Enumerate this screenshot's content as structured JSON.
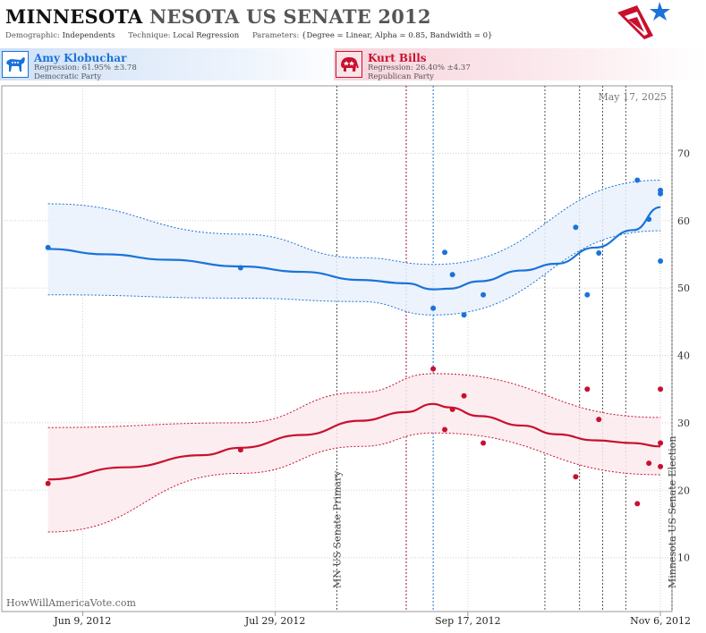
{
  "header": {
    "title_part1": "MINNESOTA",
    "title_part2": "NESOTA US SENATE 2012",
    "demographic_label": "Demographic:",
    "demographic_value": "Independents",
    "technique_label": "Technique:",
    "technique_value": "Local Regression",
    "parameters_label": "Parameters:",
    "parameters_value": "{Degree = Linear, Alpha = 0.85, Bandwidth = 0}"
  },
  "logo": {
    "icon": "star-flag-logo-icon"
  },
  "candidates": [
    {
      "name": "Amy Klobuchar",
      "regression": "Regression: 61.95% ±3.78",
      "party": "Democratic Party",
      "icon": "donkey-icon",
      "color": "#1a73d9"
    },
    {
      "name": "Kurt Bills",
      "regression": "Regression: 26.40% ±4.37",
      "party": "Republican Party",
      "icon": "elephant-icon",
      "color": "#c8102e"
    }
  ],
  "chart_data": {
    "type": "scatter",
    "x_axis_type": "date",
    "x_ticks": [
      "Jun 9, 2012",
      "Jul 29, 2012",
      "Sep 17, 2012",
      "Nov 6, 2012"
    ],
    "y_ticks": [
      10,
      20,
      30,
      40,
      50,
      60,
      70
    ],
    "ylim": [
      2,
      80
    ],
    "xlim": [
      "2012-05-19",
      "2012-11-09"
    ],
    "current_date": "May 17, 2025",
    "watermark": "HowWillAmericaVote.com",
    "grid": "horizontal and vertical dotted",
    "series": [
      {
        "name": "Amy Klobuchar",
        "color": "#1a73d9",
        "band_fill": "#e9f1fb",
        "polls": [
          {
            "x": "2012-05-31",
            "y": 56
          },
          {
            "x": "2012-07-20",
            "y": 53
          },
          {
            "x": "2012-09-08",
            "y": 47
          },
          {
            "x": "2012-09-11",
            "y": 55.3
          },
          {
            "x": "2012-09-13",
            "y": 52
          },
          {
            "x": "2012-09-16",
            "y": 46
          },
          {
            "x": "2012-09-21",
            "y": 49
          },
          {
            "x": "2012-10-15",
            "y": 59
          },
          {
            "x": "2012-10-18",
            "y": 49
          },
          {
            "x": "2012-10-21",
            "y": 55.2
          },
          {
            "x": "2012-10-31",
            "y": 66
          },
          {
            "x": "2012-11-03",
            "y": 60.2
          },
          {
            "x": "2012-11-06",
            "y": 64.5
          },
          {
            "x": "2012-11-06",
            "y": 64
          },
          {
            "x": "2012-11-06",
            "y": 54
          }
        ],
        "regression": [
          {
            "x": "2012-05-31",
            "y": 55.8,
            "lo": 49,
            "hi": 62.5
          },
          {
            "x": "2012-06-15",
            "y": 55
          },
          {
            "x": "2012-07-01",
            "y": 54.2
          },
          {
            "x": "2012-07-20",
            "y": 53.2,
            "lo": 48.5,
            "hi": 58
          },
          {
            "x": "2012-08-05",
            "y": 52.4
          },
          {
            "x": "2012-08-20",
            "y": 51.2,
            "lo": 48,
            "hi": 54.5
          },
          {
            "x": "2012-09-01",
            "y": 50.7
          },
          {
            "x": "2012-09-08",
            "y": 49.8,
            "lo": 46,
            "hi": 53.5
          },
          {
            "x": "2012-09-12",
            "y": 49.9
          },
          {
            "x": "2012-09-20",
            "y": 51
          },
          {
            "x": "2012-10-01",
            "y": 52.6
          },
          {
            "x": "2012-10-10",
            "y": 53.6
          },
          {
            "x": "2012-10-20",
            "y": 56
          },
          {
            "x": "2012-10-30",
            "y": 58.6
          },
          {
            "x": "2012-11-06",
            "y": 62,
            "lo": 58.5,
            "hi": 66
          }
        ]
      },
      {
        "name": "Kurt Bills",
        "color": "#c8102e",
        "band_fill": "#fbeaee",
        "polls": [
          {
            "x": "2012-05-31",
            "y": 21
          },
          {
            "x": "2012-07-20",
            "y": 26
          },
          {
            "x": "2012-09-08",
            "y": 38
          },
          {
            "x": "2012-09-11",
            "y": 29
          },
          {
            "x": "2012-09-13",
            "y": 32
          },
          {
            "x": "2012-09-16",
            "y": 34
          },
          {
            "x": "2012-09-21",
            "y": 27
          },
          {
            "x": "2012-10-15",
            "y": 22
          },
          {
            "x": "2012-10-18",
            "y": 35
          },
          {
            "x": "2012-10-21",
            "y": 30.5
          },
          {
            "x": "2012-10-31",
            "y": 18
          },
          {
            "x": "2012-11-03",
            "y": 24
          },
          {
            "x": "2012-11-06",
            "y": 35
          },
          {
            "x": "2012-11-06",
            "y": 27
          },
          {
            "x": "2012-11-06",
            "y": 23.5
          }
        ],
        "regression": [
          {
            "x": "2012-05-31",
            "y": 21.6,
            "lo": 13.8,
            "hi": 29.3
          },
          {
            "x": "2012-06-20",
            "y": 23.4
          },
          {
            "x": "2012-07-10",
            "y": 25.2
          },
          {
            "x": "2012-07-20",
            "y": 26.3,
            "lo": 22.5,
            "hi": 30
          },
          {
            "x": "2012-08-05",
            "y": 28.2
          },
          {
            "x": "2012-08-20",
            "y": 30.3,
            "lo": 26.5,
            "hi": 34.5
          },
          {
            "x": "2012-09-01",
            "y": 31.6
          },
          {
            "x": "2012-09-08",
            "y": 32.8,
            "lo": 28.5,
            "hi": 37.3
          },
          {
            "x": "2012-09-12",
            "y": 32.3
          },
          {
            "x": "2012-09-20",
            "y": 31
          },
          {
            "x": "2012-10-01",
            "y": 29.6
          },
          {
            "x": "2012-10-10",
            "y": 28.3
          },
          {
            "x": "2012-10-20",
            "y": 27.4
          },
          {
            "x": "2012-10-30",
            "y": 27
          },
          {
            "x": "2012-11-06",
            "y": 26.5,
            "lo": 22.3,
            "hi": 30.8
          }
        ]
      }
    ],
    "events": [
      {
        "x": "2012-08-14",
        "label": "MN US Senate Primary",
        "color": "#555555"
      },
      {
        "x": "2012-09-01",
        "label": "",
        "color": "#a01040"
      },
      {
        "x": "2012-09-08",
        "label": "",
        "color": "#1a73d9"
      },
      {
        "x": "2012-10-07",
        "label": "",
        "color": "#555555"
      },
      {
        "x": "2012-10-16",
        "label": "",
        "color": "#555555"
      },
      {
        "x": "2012-10-22",
        "label": "",
        "color": "#555555"
      },
      {
        "x": "2012-10-28",
        "label": "",
        "color": "#555555"
      },
      {
        "x": "2012-11-09",
        "label": "Minnesota US Senate Election",
        "color": "#555555"
      }
    ]
  }
}
